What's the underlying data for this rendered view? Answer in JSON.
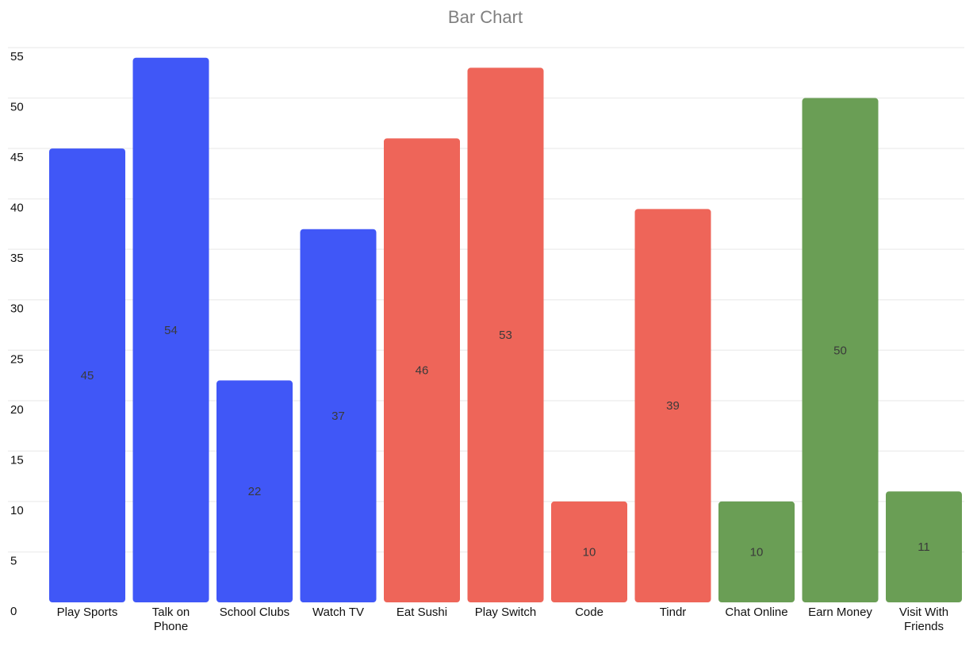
{
  "chart_data": {
    "type": "bar",
    "title": "Bar Chart",
    "xlabel": "",
    "ylabel": "",
    "ylim": [
      0,
      55
    ],
    "yticks": [
      0,
      5,
      10,
      15,
      20,
      25,
      30,
      35,
      40,
      45,
      50,
      55
    ],
    "grid": true,
    "categories": [
      [
        "Play Sports"
      ],
      [
        "Talk on",
        "Phone"
      ],
      [
        "School Clubs"
      ],
      [
        "Watch TV"
      ],
      [
        "Eat Sushi"
      ],
      [
        "Play Switch"
      ],
      [
        "Code"
      ],
      [
        "Tindr"
      ],
      [
        "Chat Online"
      ],
      [
        "Earn Money"
      ],
      [
        "Visit With",
        "Friends"
      ]
    ],
    "values": [
      45,
      54,
      22,
      37,
      46,
      53,
      10,
      39,
      10,
      50,
      11
    ],
    "colors": [
      "#4057f7",
      "#4057f7",
      "#4057f7",
      "#4057f7",
      "#ee6559",
      "#ee6559",
      "#ee6559",
      "#ee6559",
      "#6a9e55",
      "#6a9e55",
      "#6a9e55"
    ],
    "data_labels": true
  }
}
